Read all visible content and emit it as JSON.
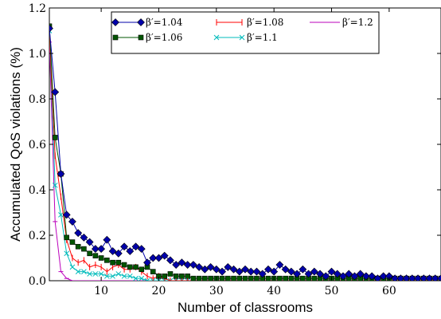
{
  "chart_data": {
    "type": "line",
    "xlabel": "Number of classrooms",
    "ylabel": "Accumulated QoS violations (%)",
    "xlim": [
      1,
      69
    ],
    "ylim": [
      0,
      1.2
    ],
    "x_ticks": [
      10,
      20,
      30,
      40,
      50,
      60
    ],
    "y_ticks": [
      0.0,
      0.2,
      0.4,
      0.6,
      0.8,
      1.0,
      1.2
    ],
    "x_tick_labels": [
      "10",
      "20",
      "30",
      "40",
      "50",
      "60"
    ],
    "y_tick_labels": [
      "0.0",
      "0.2",
      "0.4",
      "0.6",
      "0.8",
      "1.0",
      "1.2"
    ],
    "grid": false,
    "legend_position": "top",
    "series": [
      {
        "name": "β′=1.04",
        "color": "#0000aa",
        "marker": "diamond",
        "x": [
          1,
          2,
          3,
          4,
          5,
          6,
          7,
          8,
          9,
          10,
          11,
          12,
          13,
          14,
          15,
          16,
          17,
          18,
          19,
          20,
          21,
          22,
          23,
          24,
          25,
          26,
          27,
          28,
          29,
          30,
          31,
          32,
          33,
          34,
          35,
          36,
          37,
          38,
          39,
          40,
          41,
          42,
          43,
          44,
          45,
          46,
          47,
          48,
          49,
          50,
          51,
          52,
          53,
          54,
          55,
          56,
          57,
          58,
          59,
          60,
          61,
          62,
          63,
          64,
          65,
          66,
          67,
          68,
          69
        ],
        "values": [
          1.11,
          0.83,
          0.47,
          0.29,
          0.26,
          0.21,
          0.19,
          0.17,
          0.14,
          0.14,
          0.18,
          0.13,
          0.12,
          0.15,
          0.13,
          0.15,
          0.14,
          0.08,
          0.1,
          0.1,
          0.11,
          0.09,
          0.07,
          0.08,
          0.07,
          0.07,
          0.06,
          0.05,
          0.06,
          0.05,
          0.04,
          0.06,
          0.05,
          0.04,
          0.05,
          0.04,
          0.04,
          0.03,
          0.05,
          0.04,
          0.07,
          0.05,
          0.04,
          0.03,
          0.05,
          0.03,
          0.04,
          0.03,
          0.02,
          0.04,
          0.03,
          0.02,
          0.03,
          0.02,
          0.03,
          0.02,
          0.02,
          0.01,
          0.02,
          0.02,
          0.01,
          0.01,
          0.01,
          0.01,
          0.01,
          0.01,
          0.01,
          0.01,
          0.01
        ]
      },
      {
        "name": "β′=1.06",
        "color": "#005500",
        "marker": "square",
        "x": [
          1,
          2,
          3,
          4,
          5,
          6,
          7,
          8,
          9,
          10,
          11,
          12,
          13,
          14,
          15,
          16,
          17,
          18,
          19,
          20,
          21,
          22,
          23,
          24,
          25,
          26,
          27,
          28,
          29,
          30,
          31,
          32,
          33,
          34,
          35,
          36,
          37,
          38,
          39,
          40,
          41,
          42,
          43,
          44,
          45,
          46,
          47,
          48,
          49,
          50,
          51,
          52,
          53,
          54,
          55,
          56,
          57,
          58,
          59,
          60,
          61,
          62,
          63,
          64,
          65,
          66,
          67,
          68,
          69
        ],
        "values": [
          1.12,
          0.63,
          0.47,
          0.19,
          0.17,
          0.15,
          0.14,
          0.12,
          0.11,
          0.1,
          0.09,
          0.08,
          0.08,
          0.07,
          0.06,
          0.06,
          0.05,
          0.06,
          0.04,
          0.02,
          0.02,
          0.03,
          0.02,
          0.02,
          0.02,
          0.01,
          0.01,
          0.01,
          0.01,
          0.01,
          0.01,
          0.01,
          0.01,
          0.01,
          0.01,
          0.01,
          0.01,
          0.01,
          0.01,
          0.01,
          0.01,
          0.01,
          0.01,
          0.01,
          0.01,
          0.01,
          0.01,
          0.01,
          0.01,
          0.01,
          0.01,
          0.01,
          0.01,
          0.01,
          0.01,
          0.01,
          0.01,
          0.01,
          0.01,
          0.01,
          0.01,
          0.01,
          0.01,
          0.01,
          0.01,
          0.01,
          0.01,
          0.01,
          0.01
        ]
      },
      {
        "name": "β′=1.08",
        "color": "#ff0000",
        "marker": "vline",
        "x": [
          1,
          2,
          3,
          4,
          5,
          6,
          7,
          8,
          9,
          10,
          11,
          12,
          13,
          14,
          15,
          16,
          17,
          18,
          19,
          20,
          21,
          22,
          23,
          24,
          25,
          26,
          27,
          28,
          29,
          30,
          31,
          32,
          33,
          34,
          35,
          36,
          37,
          38,
          39,
          40,
          41,
          42,
          43,
          44,
          45,
          46,
          47,
          48,
          49,
          50,
          51,
          52,
          53,
          54,
          55,
          56,
          57,
          58,
          59,
          60,
          61,
          62,
          63,
          64,
          65,
          66,
          67,
          68,
          69
        ],
        "values": [
          1.09,
          0.55,
          0.37,
          0.18,
          0.1,
          0.08,
          0.09,
          0.06,
          0.07,
          0.06,
          0.04,
          0.06,
          0.07,
          0.05,
          0.05,
          0.06,
          0.04,
          0.02,
          0.01,
          0.02,
          0.01,
          0.0,
          0.0,
          0.0,
          0.0,
          0.0,
          0.0,
          0.0,
          0.0,
          0.0,
          0.0,
          0.0,
          0.0,
          0.0,
          0.0,
          0.0,
          0.0,
          0.0,
          0.0,
          0.0,
          0.0,
          0.0,
          0.0,
          0.0,
          0.0,
          0.0,
          0.0,
          0.0,
          0.0,
          0.0,
          0.0,
          0.0,
          0.0,
          0.0,
          0.0,
          0.0,
          0.0,
          0.0,
          0.0,
          0.0,
          0.0,
          0.0,
          0.0,
          0.0,
          0.0,
          0.0,
          0.0,
          0.0,
          0.0
        ]
      },
      {
        "name": "β′=1.1",
        "color": "#00bbbb",
        "marker": "x",
        "x": [
          1,
          2,
          3,
          4,
          5,
          6,
          7,
          8,
          9,
          10,
          11,
          12,
          13,
          14,
          15,
          16,
          17,
          18,
          19,
          20,
          21,
          22,
          23,
          24,
          25,
          26,
          27,
          28,
          29,
          30
        ],
        "values": [
          1.1,
          0.42,
          0.29,
          0.12,
          0.06,
          0.04,
          0.04,
          0.03,
          0.03,
          0.03,
          0.02,
          0.02,
          0.03,
          0.02,
          0.02,
          0.01,
          0.01,
          0.0,
          0.0,
          0.0,
          0.0,
          0.0,
          0.0,
          0.0,
          0.0,
          0.0,
          0.0,
          0.0,
          0.0,
          0.0
        ]
      },
      {
        "name": "β′=1.2",
        "color": "#bb00bb",
        "marker": "hline",
        "x": [
          1,
          2,
          3,
          4,
          5,
          6,
          7,
          8,
          9,
          10,
          11,
          12,
          13,
          14,
          15,
          16,
          17,
          18,
          19,
          20
        ],
        "values": [
          1.05,
          0.26,
          0.04,
          0.01,
          0.0,
          0.0,
          0.0,
          0.0,
          0.0,
          0.0,
          0.0,
          0.0,
          0.0,
          0.0,
          0.0,
          0.0,
          0.0,
          0.0,
          0.0,
          0.0
        ]
      }
    ]
  }
}
